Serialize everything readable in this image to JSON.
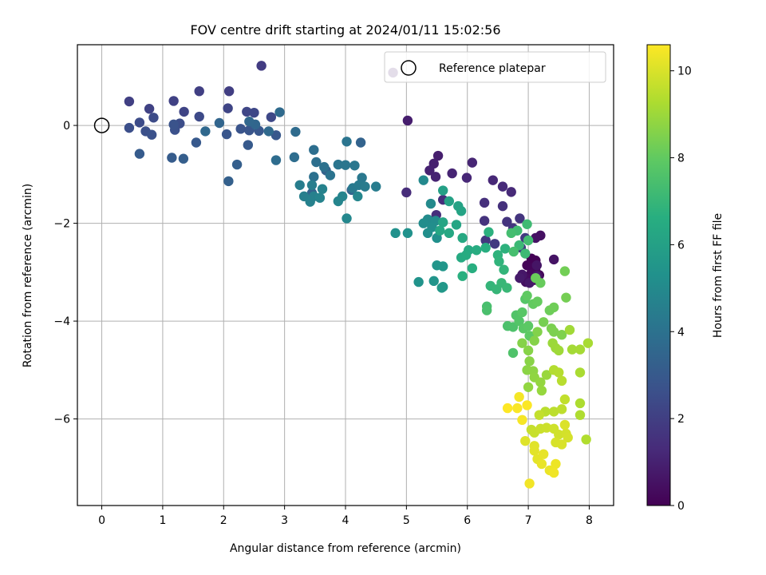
{
  "chart_data": {
    "type": "scatter",
    "title": "FOV centre drift starting at 2024/01/11 15:02:56",
    "xlabel": "Angular distance from reference (arcmin)",
    "ylabel": "Rotation from reference (arcmin)",
    "xlim": [
      -0.4,
      8.4
    ],
    "ylim": [
      -7.77,
      1.65
    ],
    "x_ticks": [
      0,
      1,
      2,
      3,
      4,
      5,
      6,
      7,
      8
    ],
    "y_ticks": [
      0,
      -2,
      -4,
      -6
    ],
    "x_tick_labels": [
      "0",
      "1",
      "2",
      "3",
      "4",
      "5",
      "6",
      "7",
      "8"
    ],
    "y_tick_labels": [
      "0",
      "−2",
      "−4",
      "−6"
    ],
    "grid": true,
    "legend": {
      "position": "top-right",
      "entries": [
        "Reference platepar"
      ]
    },
    "reference_point": {
      "x": 0,
      "y": 0
    },
    "colorbar": {
      "label": "Hours from first FF file",
      "range": [
        0,
        10.6
      ],
      "ticks": [
        0,
        2,
        4,
        6,
        8,
        10
      ],
      "tick_labels": [
        "0",
        "2",
        "4",
        "6",
        "8",
        "10"
      ],
      "colormap": "viridis"
    },
    "series": [
      {
        "points": [
          [
            7.05,
            -2.72
          ],
          [
            7.12,
            -2.76
          ],
          [
            6.98,
            -2.86
          ],
          [
            7.05,
            -2.92
          ],
          [
            7.12,
            -2.98
          ],
          [
            7.04,
            -3.04
          ],
          [
            7.18,
            -3.06
          ],
          [
            6.92,
            -3.1
          ],
          [
            7.0,
            -3.14
          ],
          [
            7.1,
            -3.16
          ],
          [
            6.96,
            -3.2
          ],
          [
            7.2,
            -2.25
          ],
          [
            7.12,
            -2.3
          ],
          [
            7.42,
            -2.74
          ],
          [
            7.14,
            -2.86
          ],
          [
            6.9,
            -3.05
          ],
          [
            7.02,
            -3.22
          ],
          [
            7.14,
            -3.08
          ],
          [
            6.86,
            -3.12
          ],
          [
            4.78,
            1.08
          ],
          [
            5.02,
            0.1
          ],
          [
            5.52,
            -0.62
          ],
          [
            5.45,
            -0.78
          ],
          [
            5.38,
            -0.92
          ],
          [
            5.48,
            -1.05
          ],
          [
            5.75,
            -0.98
          ],
          [
            6.08,
            -0.76
          ],
          [
            5.99,
            -1.07
          ],
          [
            6.42,
            -1.12
          ],
          [
            6.72,
            -1.36
          ],
          [
            6.58,
            -1.25
          ],
          [
            5.0,
            -1.37
          ],
          [
            5.6,
            -1.52
          ],
          [
            5.49,
            -1.83
          ],
          [
            6.28,
            -1.58
          ],
          [
            6.58,
            -1.65
          ],
          [
            6.28,
            -1.95
          ],
          [
            6.65,
            -1.97
          ],
          [
            6.86,
            -1.9
          ],
          [
            6.75,
            -2.1
          ],
          [
            6.3,
            -2.35
          ],
          [
            6.45,
            -2.42
          ],
          [
            6.95,
            -2.3
          ],
          [
            6.88,
            -2.5
          ],
          [
            2.62,
            1.22
          ],
          [
            2.09,
            0.7
          ],
          [
            1.6,
            0.7
          ],
          [
            0.45,
            0.49
          ],
          [
            1.18,
            0.5
          ],
          [
            0.78,
            0.34
          ],
          [
            1.35,
            0.28
          ],
          [
            2.07,
            0.35
          ],
          [
            2.38,
            0.28
          ],
          [
            2.5,
            0.26
          ],
          [
            2.78,
            0.17
          ],
          [
            1.6,
            0.18
          ],
          [
            0.85,
            0.16
          ],
          [
            0.62,
            0.06
          ],
          [
            1.28,
            0.04
          ],
          [
            0.45,
            -0.05
          ],
          [
            0.72,
            -0.12
          ],
          [
            1.2,
            -0.09
          ],
          [
            0.82,
            -0.19
          ],
          [
            1.18,
            0.02
          ],
          [
            2.28,
            -0.07
          ],
          [
            2.42,
            -0.1
          ],
          [
            2.05,
            -0.18
          ],
          [
            2.58,
            -0.11
          ],
          [
            2.86,
            -0.2
          ],
          [
            1.55,
            -0.35
          ],
          [
            2.4,
            -0.4
          ],
          [
            0.62,
            -0.58
          ],
          [
            1.15,
            -0.66
          ],
          [
            1.34,
            -0.68
          ],
          [
            2.22,
            -0.8
          ],
          [
            2.08,
            -1.14
          ],
          [
            3.68,
            -0.92
          ],
          [
            3.45,
            -1.38
          ],
          [
            4.25,
            -0.35
          ],
          [
            4.1,
            -1.32
          ],
          [
            1.93,
            0.05
          ],
          [
            2.52,
            0.02
          ],
          [
            2.42,
            0.08
          ],
          [
            1.7,
            -0.12
          ],
          [
            2.74,
            -0.12
          ],
          [
            2.92,
            0.27
          ],
          [
            3.18,
            -0.13
          ],
          [
            2.86,
            -0.71
          ],
          [
            3.16,
            -0.65
          ],
          [
            3.48,
            -0.5
          ],
          [
            3.52,
            -0.75
          ],
          [
            3.48,
            -1.05
          ],
          [
            3.65,
            -0.85
          ],
          [
            3.75,
            -1.02
          ],
          [
            4.02,
            -0.33
          ],
          [
            3.88,
            -0.8
          ],
          [
            4.0,
            -0.81
          ],
          [
            4.15,
            -0.82
          ],
          [
            4.27,
            -1.07
          ],
          [
            4.12,
            -1.28
          ],
          [
            4.22,
            -1.22
          ],
          [
            4.32,
            -1.25
          ],
          [
            4.5,
            -1.25
          ],
          [
            3.25,
            -1.22
          ],
          [
            3.45,
            -1.22
          ],
          [
            3.32,
            -1.45
          ],
          [
            3.48,
            -1.45
          ],
          [
            3.42,
            -1.56
          ],
          [
            3.62,
            -1.3
          ],
          [
            3.58,
            -1.48
          ],
          [
            3.95,
            -1.45
          ],
          [
            3.88,
            -1.55
          ],
          [
            4.2,
            -1.45
          ],
          [
            4.02,
            -1.9
          ],
          [
            5.28,
            -1.12
          ],
          [
            5.4,
            -1.6
          ],
          [
            5.35,
            -1.92
          ],
          [
            5.48,
            -1.95
          ],
          [
            5.28,
            -2.0
          ],
          [
            5.42,
            -2.08
          ],
          [
            5.35,
            -2.2
          ],
          [
            5.5,
            -2.3
          ],
          [
            4.82,
            -2.2
          ],
          [
            5.02,
            -2.2
          ],
          [
            5.2,
            -3.2
          ],
          [
            5.45,
            -3.18
          ],
          [
            5.5,
            -2.86
          ],
          [
            5.6,
            -2.88
          ],
          [
            5.6,
            -3.3
          ],
          [
            5.58,
            -3.32
          ]
        ],
        "hours_range": [
          0.0,
          5.6
        ]
      },
      {
        "points": [
          [
            5.6,
            -1.33
          ],
          [
            5.7,
            -1.55
          ],
          [
            5.85,
            -1.65
          ],
          [
            5.9,
            -1.75
          ],
          [
            5.6,
            -1.98
          ],
          [
            5.82,
            -2.03
          ],
          [
            5.55,
            -2.15
          ],
          [
            5.7,
            -2.2
          ],
          [
            5.92,
            -2.3
          ],
          [
            6.02,
            -2.55
          ],
          [
            5.9,
            -2.7
          ],
          [
            5.98,
            -2.65
          ],
          [
            6.15,
            -2.55
          ],
          [
            6.3,
            -2.5
          ],
          [
            6.08,
            -2.92
          ],
          [
            5.92,
            -3.08
          ],
          [
            6.35,
            -2.18
          ],
          [
            6.62,
            -2.52
          ],
          [
            6.5,
            -2.65
          ],
          [
            6.52,
            -2.78
          ],
          [
            6.6,
            -2.95
          ],
          [
            6.38,
            -3.28
          ],
          [
            6.48,
            -3.35
          ],
          [
            6.56,
            -3.22
          ],
          [
            6.65,
            -3.32
          ],
          [
            6.85,
            -2.45
          ],
          [
            6.95,
            -2.62
          ],
          [
            6.98,
            -2.02
          ],
          [
            6.82,
            -2.15
          ],
          [
            7.0,
            -2.35
          ],
          [
            6.72,
            -2.2
          ],
          [
            6.76,
            -2.58
          ],
          [
            6.32,
            -3.7
          ],
          [
            6.32,
            -3.78
          ],
          [
            6.66,
            -4.1
          ],
          [
            6.75,
            -4.12
          ],
          [
            6.75,
            -4.65
          ],
          [
            6.8,
            -3.88
          ],
          [
            6.85,
            -4.0
          ],
          [
            6.95,
            -3.55
          ],
          [
            6.9,
            -3.82
          ],
          [
            6.92,
            -4.15
          ],
          [
            7.0,
            -4.1
          ],
          [
            7.02,
            -4.3
          ],
          [
            6.98,
            -3.48
          ],
          [
            7.08,
            -3.65
          ],
          [
            7.15,
            -3.6
          ],
          [
            7.2,
            -3.22
          ],
          [
            7.12,
            -3.12
          ],
          [
            7.35,
            -3.78
          ],
          [
            7.42,
            -3.72
          ],
          [
            7.6,
            -2.98
          ],
          [
            7.62,
            -3.52
          ],
          [
            7.25,
            -4.02
          ],
          [
            7.38,
            -4.15
          ],
          [
            7.42,
            -4.22
          ],
          [
            7.55,
            -4.28
          ],
          [
            7.15,
            -4.22
          ],
          [
            7.1,
            -4.4
          ]
        ],
        "hours_range": [
          6.0,
          8.6
        ]
      },
      {
        "points": [
          [
            6.9,
            -4.45
          ],
          [
            7.0,
            -4.6
          ],
          [
            7.02,
            -4.82
          ],
          [
            6.98,
            -5.0
          ],
          [
            7.08,
            -5.02
          ],
          [
            7.1,
            -5.15
          ],
          [
            7.0,
            -5.35
          ],
          [
            7.2,
            -5.25
          ],
          [
            7.22,
            -5.42
          ],
          [
            7.3,
            -5.1
          ],
          [
            7.4,
            -4.45
          ],
          [
            7.45,
            -4.55
          ],
          [
            7.5,
            -4.6
          ],
          [
            7.68,
            -4.18
          ],
          [
            7.72,
            -4.58
          ],
          [
            7.85,
            -4.58
          ],
          [
            7.98,
            -4.45
          ],
          [
            7.85,
            -5.05
          ],
          [
            7.85,
            -5.68
          ],
          [
            7.85,
            -5.92
          ],
          [
            7.95,
            -6.42
          ],
          [
            7.42,
            -5.0
          ],
          [
            7.5,
            -5.05
          ],
          [
            7.55,
            -5.22
          ],
          [
            7.28,
            -5.85
          ],
          [
            7.42,
            -5.85
          ],
          [
            7.55,
            -5.8
          ],
          [
            7.6,
            -5.6
          ],
          [
            7.18,
            -5.92
          ],
          [
            7.05,
            -6.22
          ],
          [
            7.1,
            -6.28
          ],
          [
            7.2,
            -6.2
          ],
          [
            7.3,
            -6.18
          ],
          [
            7.42,
            -6.2
          ],
          [
            7.5,
            -6.32
          ],
          [
            7.62,
            -6.3
          ],
          [
            7.65,
            -6.38
          ],
          [
            7.45,
            -6.48
          ],
          [
            7.55,
            -6.52
          ],
          [
            7.6,
            -6.12
          ],
          [
            6.95,
            -6.45
          ],
          [
            7.1,
            -6.55
          ],
          [
            7.1,
            -6.65
          ],
          [
            7.15,
            -6.82
          ],
          [
            7.25,
            -6.72
          ],
          [
            7.22,
            -6.92
          ],
          [
            7.35,
            -7.05
          ],
          [
            7.45,
            -6.92
          ],
          [
            7.42,
            -7.1
          ],
          [
            7.02,
            -7.32
          ],
          [
            6.85,
            -5.55
          ],
          [
            6.9,
            -6.02
          ],
          [
            6.82,
            -5.78
          ],
          [
            6.98,
            -5.72
          ],
          [
            6.66,
            -5.78
          ]
        ],
        "hours_range": [
          8.6,
          10.6
        ]
      }
    ]
  }
}
